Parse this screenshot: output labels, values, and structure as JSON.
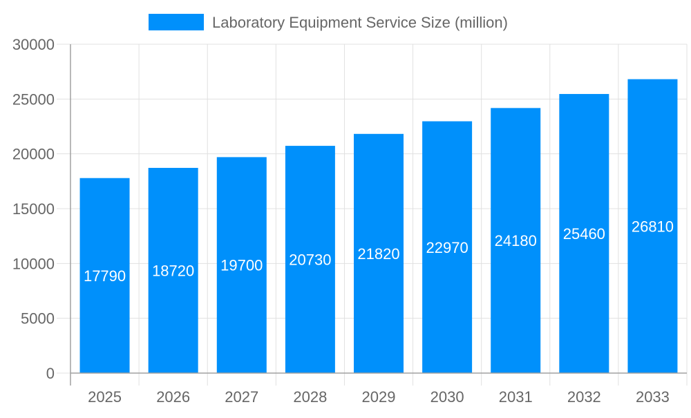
{
  "chart_data": {
    "type": "bar",
    "title": "",
    "xlabel": "",
    "ylabel": "",
    "categories": [
      "2025",
      "2026",
      "2027",
      "2028",
      "2029",
      "2030",
      "2031",
      "2032",
      "2033"
    ],
    "series": [
      {
        "name": "Laboratory Equipment Service Size (million)",
        "values": [
          17790,
          18720,
          19700,
          20730,
          21820,
          22970,
          24180,
          25460,
          26810
        ]
      }
    ],
    "ylim": [
      0,
      30000
    ],
    "yticks": [
      0,
      5000,
      10000,
      15000,
      20000,
      25000,
      30000
    ],
    "grid": true,
    "legend": "top-center",
    "data_labels": "inside-center",
    "colors": {
      "bar": "#0090fb",
      "label": "#ffffff",
      "tick_text": "#666666",
      "grid": "#e0e0e0",
      "axis": "#a0a0a0"
    }
  }
}
